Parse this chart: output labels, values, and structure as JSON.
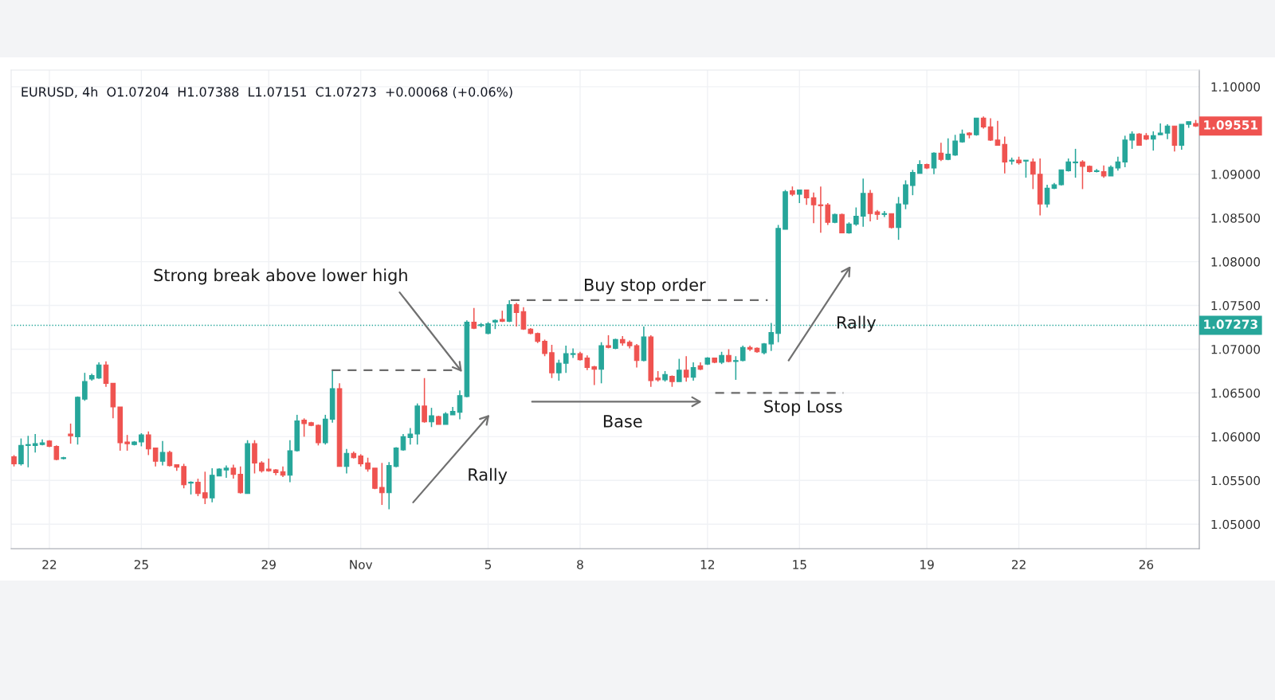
{
  "chart_data": {
    "type": "candlestick",
    "categories": [
      null,
      null,
      null,
      null,
      null,
      "22",
      null,
      null,
      null,
      null,
      null,
      null,
      null,
      null,
      null,
      null,
      null,
      null,
      "25",
      null,
      null,
      null,
      null,
      null,
      null,
      null,
      null,
      null,
      null,
      null,
      null,
      null,
      null,
      null,
      null,
      null,
      "29",
      null,
      null,
      null,
      null,
      null,
      null,
      null,
      null,
      null,
      null,
      null,
      null,
      "Nov",
      null,
      null,
      null,
      null,
      null,
      null,
      null,
      null,
      null,
      null,
      null,
      null,
      null,
      null,
      null,
      null,
      null,
      "5",
      null,
      null,
      null,
      null,
      null,
      null,
      null,
      null,
      null,
      null,
      null,
      null,
      "8",
      null,
      null,
      null,
      null,
      null,
      null,
      null,
      null,
      null,
      null,
      null,
      null,
      null,
      null,
      null,
      null,
      null,
      "12",
      null,
      null,
      null,
      null,
      null,
      null,
      null,
      null,
      null,
      null,
      null,
      null,
      "15",
      null,
      null,
      null,
      null,
      null,
      null,
      null,
      null,
      null,
      null,
      null,
      null,
      null,
      null,
      null,
      null,
      null,
      "19",
      null,
      null,
      null,
      null,
      null,
      null,
      null,
      null,
      null,
      null,
      null,
      null,
      "22",
      null,
      null,
      null,
      null,
      null,
      null,
      null,
      null,
      null,
      null,
      null,
      null,
      null,
      null,
      null,
      null,
      null,
      "26",
      null,
      null,
      null,
      null,
      null,
      null,
      null
    ],
    "ohlc": [
      [
        1.0577,
        1.0579,
        1.0566,
        1.0569
      ],
      [
        1.0569,
        1.0598,
        1.0567,
        1.059
      ],
      [
        1.059,
        1.0601,
        1.0565,
        1.0591
      ],
      [
        1.059,
        1.0603,
        1.0582,
        1.0592
      ],
      [
        1.0591,
        1.0597,
        1.059,
        1.0593
      ],
      [
        1.0595,
        1.0596,
        1.0588,
        1.0589
      ],
      [
        1.0589,
        1.059,
        1.0573,
        1.0574
      ],
      [
        1.0575,
        1.0577,
        1.0574,
        1.0576
      ],
      [
        1.0603,
        1.0615,
        1.0592,
        1.0601
      ],
      [
        1.06,
        1.0646,
        1.0591,
        1.0645
      ],
      [
        1.0643,
        1.0673,
        1.0641,
        1.0663
      ],
      [
        1.0666,
        1.0672,
        1.0664,
        1.067
      ],
      [
        1.0667,
        1.0685,
        1.0666,
        1.0682
      ],
      [
        1.0682,
        1.0686,
        1.0657,
        1.0661
      ],
      [
        1.0661,
        1.0661,
        1.0621,
        1.0634
      ],
      [
        1.0634,
        1.0634,
        1.0584,
        1.0593
      ],
      [
        1.0594,
        1.0602,
        1.0584,
        1.0592
      ],
      [
        1.0591,
        1.0595,
        1.059,
        1.0594
      ],
      [
        1.0594,
        1.0604,
        1.0589,
        1.0602
      ],
      [
        1.0602,
        1.0606,
        1.0579,
        1.0586
      ],
      [
        1.0587,
        1.0587,
        1.0566,
        1.0572
      ],
      [
        1.0572,
        1.0595,
        1.0567,
        1.0582
      ],
      [
        1.0582,
        1.0584,
        1.0566,
        1.0567
      ],
      [
        1.0568,
        1.0568,
        1.0561,
        1.0565
      ],
      [
        1.0566,
        1.0569,
        1.0541,
        1.0545
      ],
      [
        1.0547,
        1.0549,
        1.0534,
        1.0548
      ],
      [
        1.0548,
        1.0552,
        1.0532,
        1.0535
      ],
      [
        1.0536,
        1.056,
        1.0523,
        1.053
      ],
      [
        1.053,
        1.0564,
        1.0525,
        1.0556
      ],
      [
        1.0555,
        1.0564,
        1.0555,
        1.0563
      ],
      [
        1.0562,
        1.0567,
        1.0553,
        1.0564
      ],
      [
        1.0564,
        1.0568,
        1.0552,
        1.0557
      ],
      [
        1.0557,
        1.0566,
        1.0535,
        1.0536
      ],
      [
        1.0535,
        1.0596,
        1.0535,
        1.0592
      ],
      [
        1.0592,
        1.0596,
        1.0558,
        1.057
      ],
      [
        1.057,
        1.0572,
        1.0559,
        1.0561
      ],
      [
        1.0563,
        1.0575,
        1.056,
        1.0561
      ],
      [
        1.0562,
        1.0563,
        1.0556,
        1.0559
      ],
      [
        1.056,
        1.0566,
        1.0554,
        1.0556
      ],
      [
        1.0556,
        1.0596,
        1.0548,
        1.0584
      ],
      [
        1.0584,
        1.0625,
        1.0583,
        1.0618
      ],
      [
        1.0619,
        1.0621,
        1.06,
        1.0615
      ],
      [
        1.0616,
        1.0617,
        1.0612,
        1.0613
      ],
      [
        1.0613,
        1.0614,
        1.059,
        1.0593
      ],
      [
        1.0593,
        1.0625,
        1.0591,
        1.062
      ],
      [
        1.062,
        1.0676,
        1.0616,
        1.0655
      ],
      [
        1.0655,
        1.0661,
        1.0566,
        1.0566
      ],
      [
        1.0566,
        1.0586,
        1.0558,
        1.0581
      ],
      [
        1.0581,
        1.0583,
        1.0575,
        1.0576
      ],
      [
        1.0578,
        1.058,
        1.0566,
        1.0569
      ],
      [
        1.057,
        1.0576,
        1.056,
        1.0563
      ],
      [
        1.0564,
        1.0564,
        1.054,
        1.0541
      ],
      [
        1.0542,
        1.057,
        1.0522,
        1.0536
      ],
      [
        1.0536,
        1.0571,
        1.0517,
        1.0567
      ],
      [
        1.0566,
        1.0588,
        1.0565,
        1.0587
      ],
      [
        1.0585,
        1.0603,
        1.0584,
        1.06
      ],
      [
        1.0599,
        1.061,
        1.0591,
        1.0603
      ],
      [
        1.0603,
        1.0638,
        1.0591,
        1.0635
      ],
      [
        1.0635,
        1.0667,
        1.0616,
        1.0617
      ],
      [
        1.0617,
        1.0633,
        1.0611,
        1.0624
      ],
      [
        1.0623,
        1.0624,
        1.0614,
        1.0614
      ],
      [
        1.0614,
        1.0628,
        1.0614,
        1.0626
      ],
      [
        1.0625,
        1.0634,
        1.0625,
        1.0629
      ],
      [
        1.0628,
        1.0653,
        1.062,
        1.0647
      ],
      [
        1.0646,
        1.0733,
        1.0645,
        1.0731
      ],
      [
        1.0731,
        1.0747,
        1.0723,
        1.0724
      ],
      [
        1.0727,
        1.073,
        1.0725,
        1.0728
      ],
      [
        1.0718,
        1.0731,
        1.0717,
        1.0729
      ],
      [
        1.0731,
        1.0734,
        1.0723,
        1.0733
      ],
      [
        1.0734,
        1.0744,
        1.0731,
        1.0732
      ],
      [
        1.0732,
        1.0756,
        1.0731,
        1.0751
      ],
      [
        1.0751,
        1.0753,
        1.0726,
        1.0742
      ],
      [
        1.0743,
        1.0748,
        1.0722,
        1.0723
      ],
      [
        1.0723,
        1.0724,
        1.0717,
        1.0718
      ],
      [
        1.0718,
        1.0719,
        1.0707,
        1.0709
      ],
      [
        1.0709,
        1.0711,
        1.0692,
        1.0695
      ],
      [
        1.0696,
        1.0705,
        1.0667,
        1.0673
      ],
      [
        1.0673,
        1.0688,
        1.0664,
        1.0684
      ],
      [
        1.0684,
        1.0704,
        1.0673,
        1.0695
      ],
      [
        1.0694,
        1.0701,
        1.069,
        1.0695
      ],
      [
        1.0695,
        1.0697,
        1.0687,
        1.0688
      ],
      [
        1.069,
        1.0693,
        1.0676,
        1.0679
      ],
      [
        1.068,
        1.0681,
        1.0659,
        1.0677
      ],
      [
        1.0677,
        1.0708,
        1.0661,
        1.0704
      ],
      [
        1.0704,
        1.0716,
        1.0701,
        1.0702
      ],
      [
        1.0701,
        1.0712,
        1.07,
        1.0711
      ],
      [
        1.0711,
        1.0715,
        1.0704,
        1.0707
      ],
      [
        1.0708,
        1.071,
        1.0701,
        1.0704
      ],
      [
        1.0704,
        1.0706,
        1.0679,
        1.0687
      ],
      [
        1.0687,
        1.0726,
        1.0686,
        1.0714
      ],
      [
        1.0714,
        1.0716,
        1.0657,
        1.0664
      ],
      [
        1.0667,
        1.0675,
        1.0663,
        1.0665
      ],
      [
        1.0665,
        1.0675,
        1.0663,
        1.0671
      ],
      [
        1.0669,
        1.067,
        1.0657,
        1.0663
      ],
      [
        1.0663,
        1.0689,
        1.0663,
        1.0676
      ],
      [
        1.0676,
        1.0692,
        1.0663,
        1.0668
      ],
      [
        1.0668,
        1.0685,
        1.0664,
        1.0679
      ],
      [
        1.0681,
        1.0685,
        1.0676,
        1.0677
      ],
      [
        1.0683,
        1.0691,
        1.0682,
        1.069
      ],
      [
        1.069,
        1.069,
        1.0684,
        1.0685
      ],
      [
        1.0685,
        1.0697,
        1.0683,
        1.0693
      ],
      [
        1.0693,
        1.07,
        1.0685,
        1.0686
      ],
      [
        1.0686,
        1.0692,
        1.0665,
        1.0687
      ],
      [
        1.0687,
        1.0704,
        1.0686,
        1.0702
      ],
      [
        1.0702,
        1.0704,
        1.0698,
        1.07
      ],
      [
        1.0701,
        1.0702,
        1.0696,
        1.0697
      ],
      [
        1.0696,
        1.0707,
        1.0694,
        1.0706
      ],
      [
        1.0706,
        1.073,
        1.0698,
        1.0719
      ],
      [
        1.0718,
        1.0842,
        1.0708,
        1.0838
      ],
      [
        1.0837,
        1.0882,
        1.0837,
        1.088
      ],
      [
        1.0881,
        1.0886,
        1.0875,
        1.0877
      ],
      [
        1.0877,
        1.0882,
        1.0867,
        1.0882
      ],
      [
        1.0882,
        1.0882,
        1.0865,
        1.0873
      ],
      [
        1.0873,
        1.0879,
        1.0844,
        1.0865
      ],
      [
        1.0865,
        1.0886,
        1.0833,
        1.0864
      ],
      [
        1.0865,
        1.0867,
        1.0842,
        1.0845
      ],
      [
        1.0845,
        1.0855,
        1.0844,
        1.0854
      ],
      [
        1.0854,
        1.0855,
        1.0833,
        1.0833
      ],
      [
        1.0833,
        1.0845,
        1.0832,
        1.0843
      ],
      [
        1.0843,
        1.0862,
        1.0841,
        1.0852
      ],
      [
        1.0852,
        1.0895,
        1.084,
        1.0878
      ],
      [
        1.0878,
        1.0882,
        1.0846,
        1.0855
      ],
      [
        1.0857,
        1.0859,
        1.0848,
        1.0854
      ],
      [
        1.0854,
        1.0858,
        1.0851,
        1.0855
      ],
      [
        1.0855,
        1.0855,
        1.0838,
        1.0839
      ],
      [
        1.0839,
        1.0874,
        1.0825,
        1.0866
      ],
      [
        1.0866,
        1.0893,
        1.086,
        1.0888
      ],
      [
        1.0887,
        1.0905,
        1.0876,
        1.0902
      ],
      [
        1.0901,
        1.0916,
        1.0901,
        1.0911
      ],
      [
        1.0911,
        1.0912,
        1.0906,
        1.0907
      ],
      [
        1.0907,
        1.0925,
        1.09,
        1.0924
      ],
      [
        1.0924,
        1.0936,
        1.0915,
        1.0917
      ],
      [
        1.0917,
        1.0941,
        1.0916,
        1.0923
      ],
      [
        1.0922,
        1.0945,
        1.0921,
        1.0938
      ],
      [
        1.0937,
        1.0951,
        1.0936,
        1.0946
      ],
      [
        1.0947,
        1.0948,
        1.0941,
        1.0945
      ],
      [
        1.0945,
        1.0964,
        1.0944,
        1.0964
      ],
      [
        1.0964,
        1.0966,
        1.0952,
        1.0954
      ],
      [
        1.0954,
        1.0964,
        1.0938,
        1.0939
      ],
      [
        1.0939,
        1.0961,
        1.0933,
        1.0933
      ],
      [
        1.0934,
        1.0943,
        1.0901,
        1.0914
      ],
      [
        1.0915,
        1.0919,
        1.0911,
        1.0916
      ],
      [
        1.0916,
        1.092,
        1.0911,
        1.0913
      ],
      [
        1.0915,
        1.0916,
        1.0896,
        1.0916
      ],
      [
        1.0914,
        1.0918,
        1.0883,
        1.09
      ],
      [
        1.09,
        1.0918,
        1.0853,
        1.0866
      ],
      [
        1.0866,
        1.0888,
        1.0862,
        1.0884
      ],
      [
        1.0884,
        1.089,
        1.0883,
        1.0888
      ],
      [
        1.0888,
        1.0905,
        1.0887,
        1.0905
      ],
      [
        1.0904,
        1.0918,
        1.0903,
        1.0914
      ],
      [
        1.0913,
        1.0929,
        1.0896,
        1.0914
      ],
      [
        1.0914,
        1.0916,
        1.0883,
        1.0909
      ],
      [
        1.0909,
        1.091,
        1.0902,
        1.0903
      ],
      [
        1.0903,
        1.0906,
        1.0902,
        1.0904
      ],
      [
        1.0903,
        1.091,
        1.0896,
        1.0898
      ],
      [
        1.0898,
        1.091,
        1.0898,
        1.0908
      ],
      [
        1.0907,
        1.092,
        1.0904,
        1.0914
      ],
      [
        1.0914,
        1.0944,
        1.0908,
        1.0939
      ],
      [
        1.0939,
        1.0949,
        1.0929,
        1.0946
      ],
      [
        1.0946,
        1.0947,
        1.0933,
        1.0933
      ],
      [
        1.0944,
        1.0947,
        1.0939,
        1.094
      ],
      [
        1.094,
        1.0949,
        1.0927,
        1.0944
      ],
      [
        1.0945,
        1.0958,
        1.0945,
        1.0947
      ],
      [
        1.0947,
        1.0957,
        1.094,
        1.0955
      ],
      [
        1.0955,
        1.0955,
        1.0926,
        1.0933
      ],
      [
        1.0933,
        1.0957,
        1.0928,
        1.0957
      ],
      [
        1.0957,
        1.096,
        1.0953,
        1.096
      ],
      [
        1.0958,
        1.0962,
        1.0954,
        1.0955
      ]
    ],
    "colors": [
      "#ef5350",
      "#26a69a",
      "#26a69a",
      "#26a69a",
      "#26a69a",
      "#ef5350",
      "#ef5350",
      "#26a69a",
      "#ef5350",
      "#26a69a",
      "#26a69a",
      "#26a69a",
      "#26a69a",
      "#ef5350",
      "#ef5350",
      "#ef5350",
      "#ef5350",
      "#26a69a",
      "#26a69a",
      "#ef5350",
      "#ef5350",
      "#26a69a",
      "#ef5350",
      "#ef5350",
      "#ef5350",
      "#26a69a",
      "#ef5350",
      "#ef5350",
      "#26a69a",
      "#26a69a",
      "#26a69a",
      "#ef5350",
      "#ef5350",
      "#26a69a",
      "#ef5350",
      "#ef5350",
      "#ef5350",
      "#ef5350",
      "#ef5350",
      "#26a69a",
      "#26a69a",
      "#ef5350",
      "#ef5350",
      "#ef5350",
      "#26a69a",
      "#26a69a",
      "#ef5350",
      "#26a69a",
      "#ef5350",
      "#ef5350",
      "#ef5350",
      "#ef5350",
      "#ef5350",
      "#26a69a",
      "#26a69a",
      "#26a69a",
      "#26a69a",
      "#26a69a",
      "#ef5350",
      "#26a69a",
      "#ef5350",
      "#26a69a",
      "#26a69a",
      "#26a69a",
      "#26a69a",
      "#ef5350",
      "#26a69a",
      "#26a69a",
      "#26a69a",
      "#ef5350",
      "#26a69a",
      "#ef5350",
      "#ef5350",
      "#ef5350",
      "#ef5350",
      "#ef5350",
      "#ef5350",
      "#26a69a",
      "#26a69a",
      "#26a69a",
      "#ef5350",
      "#ef5350",
      "#ef5350",
      "#26a69a",
      "#ef5350",
      "#26a69a",
      "#ef5350",
      "#ef5350",
      "#ef5350",
      "#26a69a",
      "#ef5350",
      "#ef5350",
      "#26a69a",
      "#ef5350",
      "#26a69a",
      "#ef5350",
      "#26a69a",
      "#ef5350",
      "#26a69a",
      "#ef5350",
      "#26a69a",
      "#ef5350",
      "#26a69a",
      "#26a69a",
      "#ef5350",
      "#ef5350",
      "#26a69a",
      "#26a69a",
      "#26a69a",
      "#26a69a",
      "#ef5350",
      "#26a69a",
      "#ef5350",
      "#ef5350",
      "#ef5350",
      "#ef5350",
      "#26a69a",
      "#ef5350",
      "#26a69a",
      "#26a69a",
      "#26a69a",
      "#ef5350",
      "#ef5350",
      "#26a69a",
      "#ef5350",
      "#26a69a",
      "#26a69a",
      "#26a69a",
      "#26a69a",
      "#ef5350",
      "#26a69a",
      "#ef5350",
      "#26a69a",
      "#26a69a",
      "#26a69a",
      "#ef5350",
      "#26a69a",
      "#ef5350",
      "#ef5350",
      "#ef5350",
      "#ef5350",
      "#26a69a",
      "#ef5350",
      "#26a69a",
      "#ef5350",
      "#ef5350",
      "#26a69a",
      "#26a69a",
      "#26a69a",
      "#26a69a",
      "#26a69a",
      "#ef5350",
      "#ef5350",
      "#26a69a",
      "#ef5350",
      "#26a69a",
      "#26a69a",
      "#26a69a",
      "#26a69a",
      "#ef5350",
      "#ef5350",
      "#26a69a",
      "#26a69a",
      "#26a69a",
      "#ef5350",
      "#26a69a",
      "#26a69a",
      "#ef5350"
    ],
    "ylim": [
      1.0472,
      1.1019
    ],
    "yticks": [
      {
        "value": 1.05,
        "label": "1.05000"
      },
      {
        "value": 1.055,
        "label": "1.05500"
      },
      {
        "value": 1.06,
        "label": "1.06000"
      },
      {
        "value": 1.065,
        "label": "1.06500"
      },
      {
        "value": 1.07,
        "label": "1.07000"
      },
      {
        "value": 1.075,
        "label": "1.07500"
      },
      {
        "value": 1.08,
        "label": "1.08000"
      },
      {
        "value": 1.085,
        "label": "1.08500"
      },
      {
        "value": 1.09,
        "label": "1.09000"
      },
      {
        "value": 1.1,
        "label": "1.10000"
      }
    ],
    "grid": true,
    "ref_lines": [
      {
        "axis": "y",
        "value": 1.07273,
        "label": "1.07273",
        "color": "#26a69a",
        "line_style": "dotted"
      }
    ],
    "annotations": [
      "EURUSD, 4h  O1.07204  H1.07388  L1.07151  C1.07273  +0.00068 (+0.06%)",
      "Strong break above lower high",
      "Buy stop order",
      "Stop Loss",
      "Base",
      "Rally",
      "Rally",
      "1.09551"
    ]
  }
}
